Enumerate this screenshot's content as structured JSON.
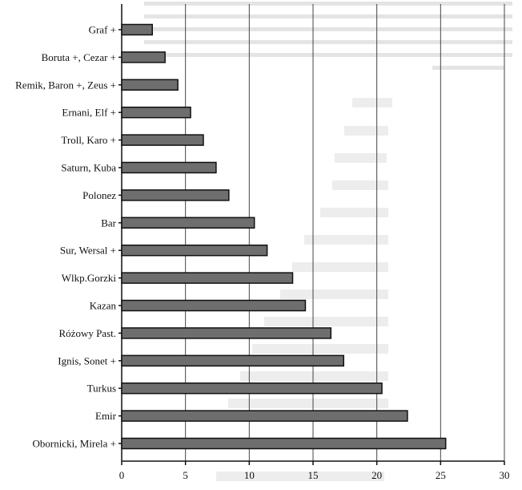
{
  "chart_data": {
    "type": "bar",
    "orientation": "horizontal",
    "categories": [
      "Graf +",
      "Boruta +, Cezar +",
      "Remik, Baron +, Zeus +",
      "Ernani, Elf +",
      "Troll, Karo +",
      "Saturn, Kuba",
      "Polonez",
      "Bar",
      "Sur, Wersal +",
      "Wlkp.Gorzki",
      "Kazan",
      "Różowy Past.",
      "Ignis, Sonet +",
      "Turkus",
      "Emir",
      "Obornicki, Mirela +"
    ],
    "values": [
      2.4,
      3.4,
      4.4,
      5.4,
      6.4,
      7.4,
      8.4,
      10.4,
      11.4,
      13.4,
      14.4,
      16.4,
      17.4,
      20.4,
      22.4,
      25.4
    ],
    "xlim": [
      0,
      30
    ],
    "xticks": [
      "0",
      "5",
      "10",
      "15",
      "20",
      "25",
      "30"
    ],
    "grid": true,
    "colors": {
      "bar_fill": "#6e6e6e",
      "bar_stroke": "#111111",
      "grid": "#444444"
    }
  }
}
